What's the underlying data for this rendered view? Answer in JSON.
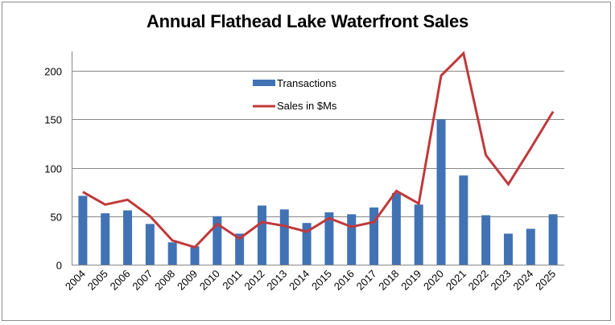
{
  "chart_data": {
    "type": "bar",
    "title": "Annual Flathead Lake Waterfront Sales",
    "xlabel": "",
    "ylabel": "",
    "ylim": [
      0,
      220
    ],
    "yticks": [
      0,
      50,
      100,
      150,
      200
    ],
    "grid": true,
    "legend_position": "top-center",
    "categories": [
      "2004",
      "2005",
      "2006",
      "2007",
      "2008",
      "2009",
      "2010",
      "2011",
      "2012",
      "2013",
      "2014",
      "2015",
      "2016",
      "2017",
      "2018",
      "2019",
      "2020",
      "2021",
      "2022",
      "2023",
      "2024",
      "2025"
    ],
    "series": [
      {
        "name": "Transactions",
        "type": "bar",
        "color": "#4172b4",
        "values": [
          71,
          53,
          56,
          42,
          23,
          19,
          50,
          32,
          61,
          57,
          43,
          54,
          52,
          59,
          74,
          62,
          150,
          92,
          51,
          32,
          37,
          52
        ]
      },
      {
        "name": "Sales in $Ms",
        "type": "line",
        "color": "#c0393c",
        "values": [
          75,
          62,
          67,
          50,
          25,
          18,
          42,
          27,
          44,
          40,
          34,
          48,
          39,
          44,
          76,
          63,
          195,
          218,
          113,
          83,
          120,
          158
        ]
      }
    ]
  }
}
